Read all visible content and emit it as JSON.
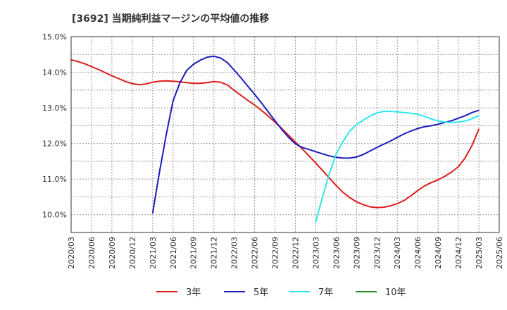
{
  "chart_data": {
    "type": "line",
    "title": "[3692]  当期純利益マージンの平均値の推移",
    "xlabel": "",
    "ylabel": "",
    "ylim": [
      9.5,
      15.0
    ],
    "xlim": [
      "2020/03",
      "2025/06"
    ],
    "yticks": [
      "10.0%",
      "11.0%",
      "12.0%",
      "13.0%",
      "14.0%",
      "15.0%"
    ],
    "ytick_values": [
      10,
      11,
      12,
      13,
      14,
      15
    ],
    "xticks": [
      "2020/03",
      "2020/06",
      "2020/09",
      "2020/12",
      "2021/03",
      "2021/06",
      "2021/09",
      "2021/12",
      "2022/03",
      "2022/06",
      "2022/09",
      "2022/12",
      "2023/03",
      "2023/06",
      "2023/09",
      "2023/12",
      "2024/03",
      "2024/06",
      "2024/09",
      "2024/12",
      "2025/03",
      "2025/06"
    ],
    "grid": true,
    "legend_position": "bottom",
    "series": [
      {
        "name": "3年",
        "color": "#dd1c1c",
        "x": [
          "2020/03",
          "2020/04",
          "2020/05",
          "2020/06",
          "2020/07",
          "2020/08",
          "2020/09",
          "2020/10",
          "2020/11",
          "2020/12",
          "2021/01",
          "2021/02",
          "2021/03",
          "2021/04",
          "2021/05",
          "2021/06",
          "2021/07",
          "2021/08",
          "2021/09",
          "2021/10",
          "2021/11",
          "2021/12",
          "2022/01",
          "2022/02",
          "2022/03",
          "2022/04",
          "2022/05",
          "2022/06",
          "2022/07",
          "2022/08",
          "2022/09",
          "2022/10",
          "2022/11",
          "2022/12",
          "2023/01",
          "2023/02",
          "2023/03",
          "2023/04",
          "2023/05",
          "2023/06",
          "2023/07",
          "2023/08",
          "2023/09",
          "2023/10",
          "2023/11",
          "2023/12",
          "2024/01",
          "2024/02",
          "2024/03",
          "2024/04",
          "2024/05",
          "2024/06",
          "2024/07",
          "2024/08",
          "2024/09",
          "2024/10",
          "2024/11",
          "2024/12",
          "2025/01",
          "2025/02",
          "2025/03"
        ],
        "values": [
          14.35,
          14.3,
          14.24,
          14.16,
          14.08,
          13.99,
          13.9,
          13.82,
          13.74,
          13.68,
          13.65,
          13.67,
          13.72,
          13.75,
          13.76,
          13.75,
          13.73,
          13.71,
          13.69,
          13.69,
          13.71,
          13.74,
          13.72,
          13.64,
          13.49,
          13.35,
          13.21,
          13.08,
          12.93,
          12.77,
          12.6,
          12.42,
          12.23,
          12.04,
          11.85,
          11.65,
          11.45,
          11.24,
          11.03,
          10.82,
          10.63,
          10.48,
          10.36,
          10.28,
          10.22,
          10.2,
          10.21,
          10.25,
          10.31,
          10.4,
          10.53,
          10.68,
          10.81,
          10.9,
          10.98,
          11.08,
          11.2,
          11.35,
          11.6,
          11.95,
          12.4
        ]
      },
      {
        "name": "5年",
        "color": "#1c1cbb",
        "x": [
          "2021/03",
          "2021/04",
          "2021/05",
          "2021/06",
          "2021/07",
          "2021/08",
          "2021/09",
          "2021/10",
          "2021/11",
          "2021/12",
          "2022/01",
          "2022/02",
          "2022/03",
          "2022/04",
          "2022/05",
          "2022/06",
          "2022/07",
          "2022/08",
          "2022/09",
          "2022/10",
          "2022/11",
          "2022/12",
          "2023/01",
          "2023/02",
          "2023/03",
          "2023/04",
          "2023/05",
          "2023/06",
          "2023/07",
          "2023/08",
          "2023/09",
          "2023/10",
          "2023/11",
          "2023/12",
          "2024/01",
          "2024/02",
          "2024/03",
          "2024/04",
          "2024/05",
          "2024/06",
          "2024/07",
          "2024/08",
          "2024/09",
          "2024/10",
          "2024/11",
          "2024/12",
          "2025/01",
          "2025/02",
          "2025/03"
        ],
        "values": [
          10.05,
          11.2,
          12.25,
          13.2,
          13.7,
          14.05,
          14.22,
          14.34,
          14.42,
          14.45,
          14.4,
          14.27,
          14.06,
          13.84,
          13.61,
          13.38,
          13.14,
          12.89,
          12.64,
          12.39,
          12.17,
          11.99,
          11.89,
          11.83,
          11.77,
          11.71,
          11.65,
          11.61,
          11.59,
          11.59,
          11.62,
          11.69,
          11.79,
          11.89,
          11.98,
          12.07,
          12.17,
          12.27,
          12.35,
          12.42,
          12.47,
          12.5,
          12.54,
          12.59,
          12.64,
          12.71,
          12.78,
          12.87,
          12.93
        ]
      },
      {
        "name": "7年",
        "color": "#2ee6ee",
        "x": [
          "2023/03",
          "2023/04",
          "2023/05",
          "2023/06",
          "2023/07",
          "2023/08",
          "2023/09",
          "2023/10",
          "2023/11",
          "2023/12",
          "2024/01",
          "2024/02",
          "2024/03",
          "2024/04",
          "2024/05",
          "2024/06",
          "2024/07",
          "2024/08",
          "2024/09",
          "2024/10",
          "2024/11",
          "2024/12",
          "2025/01",
          "2025/02",
          "2025/03"
        ],
        "values": [
          9.8,
          10.5,
          11.15,
          11.7,
          12.05,
          12.35,
          12.53,
          12.66,
          12.77,
          12.86,
          12.9,
          12.9,
          12.89,
          12.87,
          12.85,
          12.82,
          12.76,
          12.69,
          12.63,
          12.6,
          12.59,
          12.6,
          12.63,
          12.7,
          12.78
        ]
      },
      {
        "name": "10年",
        "color": "#2a8a2a",
        "x": [],
        "values": []
      }
    ]
  }
}
